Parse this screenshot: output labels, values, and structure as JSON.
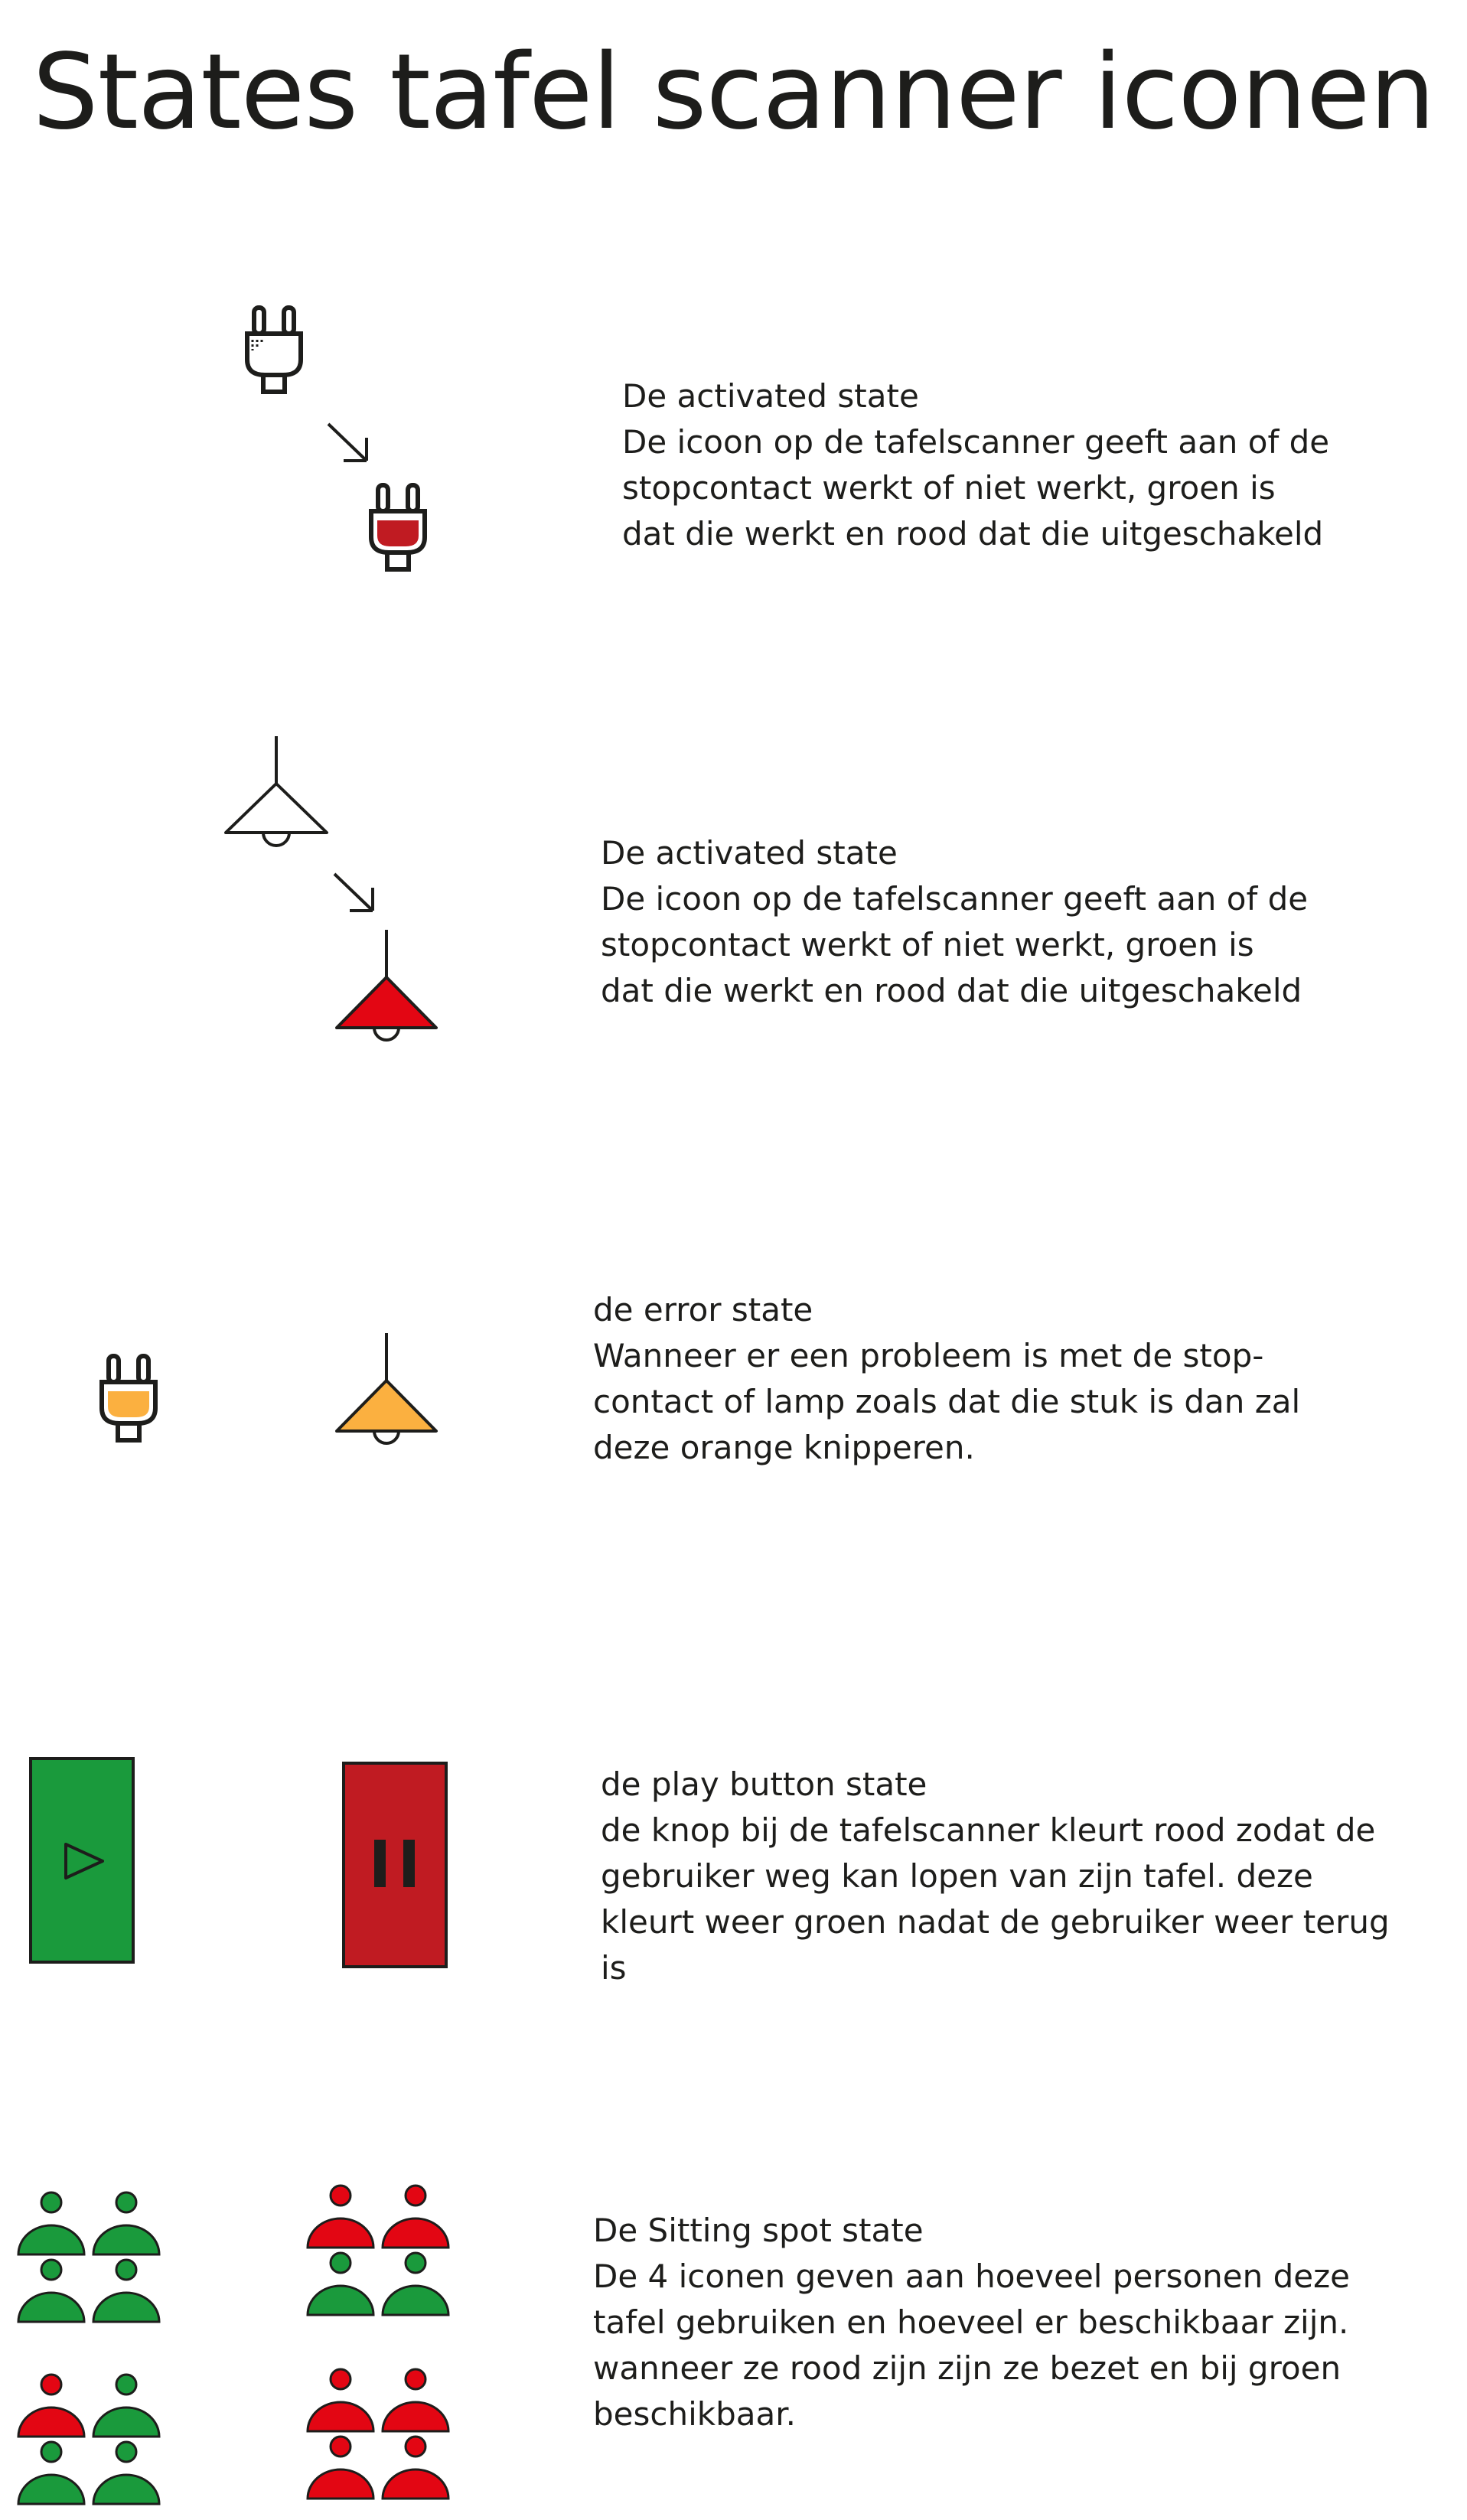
{
  "title": "States tafel scanner iconen",
  "colors": {
    "green": "#1a9a3c",
    "red": "#c01b22",
    "bright_red": "#e30613",
    "orange": "#fbb040",
    "outline": "#1d1d1b"
  },
  "sections": [
    {
      "icons": [
        "plug-white-icon",
        "arrow-down-right-icon",
        "plug-red-icon"
      ],
      "heading": "De activated state",
      "lines": [
        "De icoon op de tafelscanner geeft aan of de",
        "stopcontact werkt of niet werkt, groen is",
        "dat die werkt en rood dat die uitgeschakeld"
      ]
    },
    {
      "icons": [
        "lamp-white-icon",
        "arrow-down-right-icon",
        "lamp-red-icon"
      ],
      "heading": "De activated state",
      "lines": [
        "De icoon op de tafelscanner geeft aan of de",
        "stopcontact werkt of niet werkt, groen is",
        "dat die werkt en rood dat die uitgeschakeld"
      ]
    },
    {
      "icons": [
        "plug-orange-icon",
        "lamp-orange-icon"
      ],
      "heading": "de error state",
      "lines": [
        "Wanneer er een probleem is met de stop-",
        "contact of lamp zoals dat die stuk is dan zal",
        "deze orange knipperen."
      ]
    },
    {
      "icons": [
        "play-button-green-icon",
        "pause-button-red-icon"
      ],
      "heading": "de play button state",
      "lines": [
        "de knop bij de tafelscanner kleurt rood zodat de",
        "gebruiker weg kan lopen van zijn tafel. deze",
        "kleurt weer groen nadat de gebruiker weer terug",
        "is"
      ]
    },
    {
      "icons": [
        "people-all-green-icon",
        "people-two-red-icon",
        "people-two-red-bottom-icon",
        "people-all-red-icon"
      ],
      "heading": "De Sitting spot state",
      "lines": [
        "De 4 iconen geven aan hoeveel personen deze",
        "tafel gebruiken en hoeveel er beschikbaar zijn.",
        "wanneer ze rood zijn zijn ze bezet en bij groen",
        "beschikbaar."
      ]
    }
  ]
}
